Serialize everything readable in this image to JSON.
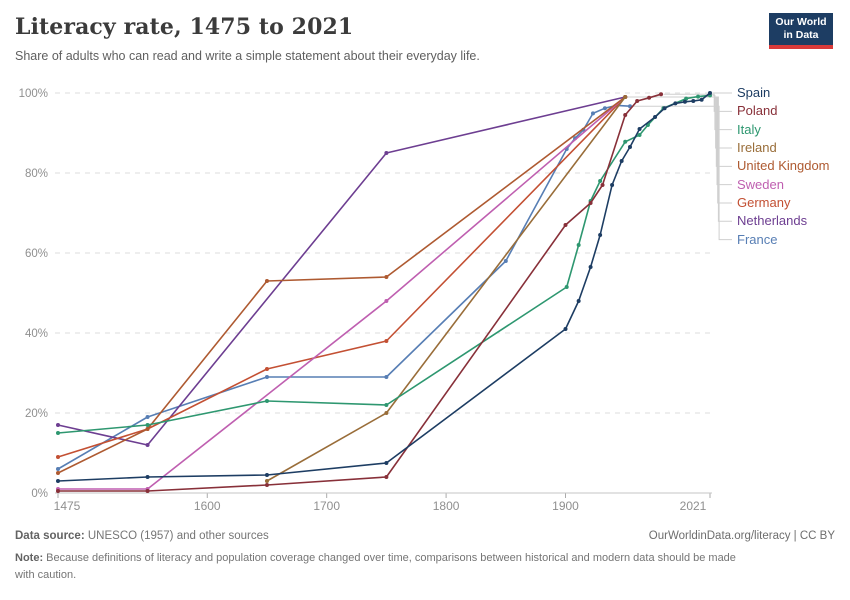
{
  "header": {
    "title": "Literacy rate, 1475 to 2021",
    "subtitle": "Share of adults who can read and write a simple statement about their everyday life."
  },
  "logo": {
    "line1": "Our World",
    "line2": "in Data",
    "bg_color": "#1d3d63",
    "accent_color": "#d93a3a"
  },
  "footer": {
    "source_label": "Data source:",
    "source_text": " UNESCO (1957) and other sources",
    "attribution": "OurWorldinData.org/literacy | CC BY",
    "note_label": "Note:",
    "note_text": " Because definitions of literacy and population coverage changed over time, comparisons between historical and modern data should be made with caution."
  },
  "chart_data": {
    "type": "line",
    "title": "Literacy rate, 1475 to 2021",
    "xlabel": "",
    "ylabel": "",
    "xlim": [
      1475,
      2021
    ],
    "ylim": [
      0,
      100
    ],
    "x_ticks": [
      1475,
      1600,
      1700,
      1800,
      1900,
      2021
    ],
    "y_ticks": [
      0,
      20,
      40,
      60,
      80,
      100
    ],
    "y_tick_suffix": "%",
    "grid": "horizontal-dashed",
    "legend_position": "right",
    "axis_text_color": "#8f8f8f",
    "grid_color": "#dcdcdc",
    "leader_line_color": "#cfcfcf",
    "series": [
      {
        "name": "Spain",
        "color": "#1d3d63",
        "points": [
          [
            1475,
            3
          ],
          [
            1550,
            4
          ],
          [
            1650,
            4.5
          ],
          [
            1750,
            7.5
          ],
          [
            1900,
            41
          ],
          [
            1911,
            48
          ],
          [
            1921,
            56.5
          ],
          [
            1929,
            64.5
          ],
          [
            1939,
            77
          ],
          [
            1947,
            83
          ],
          [
            1954,
            86.5
          ],
          [
            1962,
            91
          ],
          [
            1975,
            94
          ],
          [
            1983,
            96.2
          ],
          [
            1992,
            97.4
          ],
          [
            2000,
            97.8
          ],
          [
            2007,
            98
          ],
          [
            2014,
            98.3
          ],
          [
            2021,
            100
          ]
        ]
      },
      {
        "name": "Poland",
        "color": "#883039",
        "points": [
          [
            1475,
            0.5
          ],
          [
            1550,
            0.5
          ],
          [
            1650,
            2
          ],
          [
            1750,
            4
          ],
          [
            1900,
            67
          ],
          [
            1921,
            72.5
          ],
          [
            1931,
            77
          ],
          [
            1950,
            94.5
          ],
          [
            1960,
            98
          ],
          [
            1970,
            98.8
          ],
          [
            1980,
            99.7
          ]
        ]
      },
      {
        "name": "Italy",
        "color": "#2e9770",
        "points": [
          [
            1475,
            15
          ],
          [
            1550,
            17
          ],
          [
            1650,
            23
          ],
          [
            1750,
            22
          ],
          [
            1901,
            51.5
          ],
          [
            1911,
            62
          ],
          [
            1921,
            73
          ],
          [
            1929,
            78
          ],
          [
            1950,
            87.8
          ],
          [
            1962,
            89.5
          ],
          [
            1969,
            92
          ],
          [
            1982,
            96.2
          ],
          [
            2001,
            98.6
          ],
          [
            2011,
            99.1
          ],
          [
            2021,
            99.4
          ]
        ]
      },
      {
        "name": "Ireland",
        "color": "#996d39",
        "points": [
          [
            1650,
            3
          ],
          [
            1750,
            20
          ],
          [
            1950,
            99
          ]
        ]
      },
      {
        "name": "United Kingdom",
        "color": "#ae5a31",
        "points": [
          [
            1475,
            5
          ],
          [
            1550,
            16
          ],
          [
            1650,
            53
          ],
          [
            1750,
            54
          ],
          [
            1950,
            99
          ]
        ]
      },
      {
        "name": "Sweden",
        "color": "#bf5fb0",
        "points": [
          [
            1475,
            1
          ],
          [
            1550,
            1
          ],
          [
            1750,
            48
          ],
          [
            1950,
            99
          ]
        ]
      },
      {
        "name": "Germany",
        "color": "#c35033",
        "points": [
          [
            1475,
            9
          ],
          [
            1550,
            16
          ],
          [
            1650,
            31
          ],
          [
            1750,
            38
          ],
          [
            1950,
            99
          ]
        ]
      },
      {
        "name": "Netherlands",
        "color": "#6d3e91",
        "points": [
          [
            1475,
            17
          ],
          [
            1550,
            12
          ],
          [
            1750,
            85
          ],
          [
            1950,
            99
          ]
        ]
      },
      {
        "name": "France",
        "color": "#577eb4",
        "points": [
          [
            1475,
            6
          ],
          [
            1550,
            19
          ],
          [
            1650,
            29
          ],
          [
            1750,
            29
          ],
          [
            1850,
            58
          ],
          [
            1901,
            86
          ],
          [
            1908,
            88.7
          ],
          [
            1915,
            90.8
          ],
          [
            1923,
            94.9
          ],
          [
            1933,
            96.2
          ],
          [
            1943,
            96.9
          ],
          [
            1954,
            96.7
          ]
        ]
      }
    ]
  }
}
